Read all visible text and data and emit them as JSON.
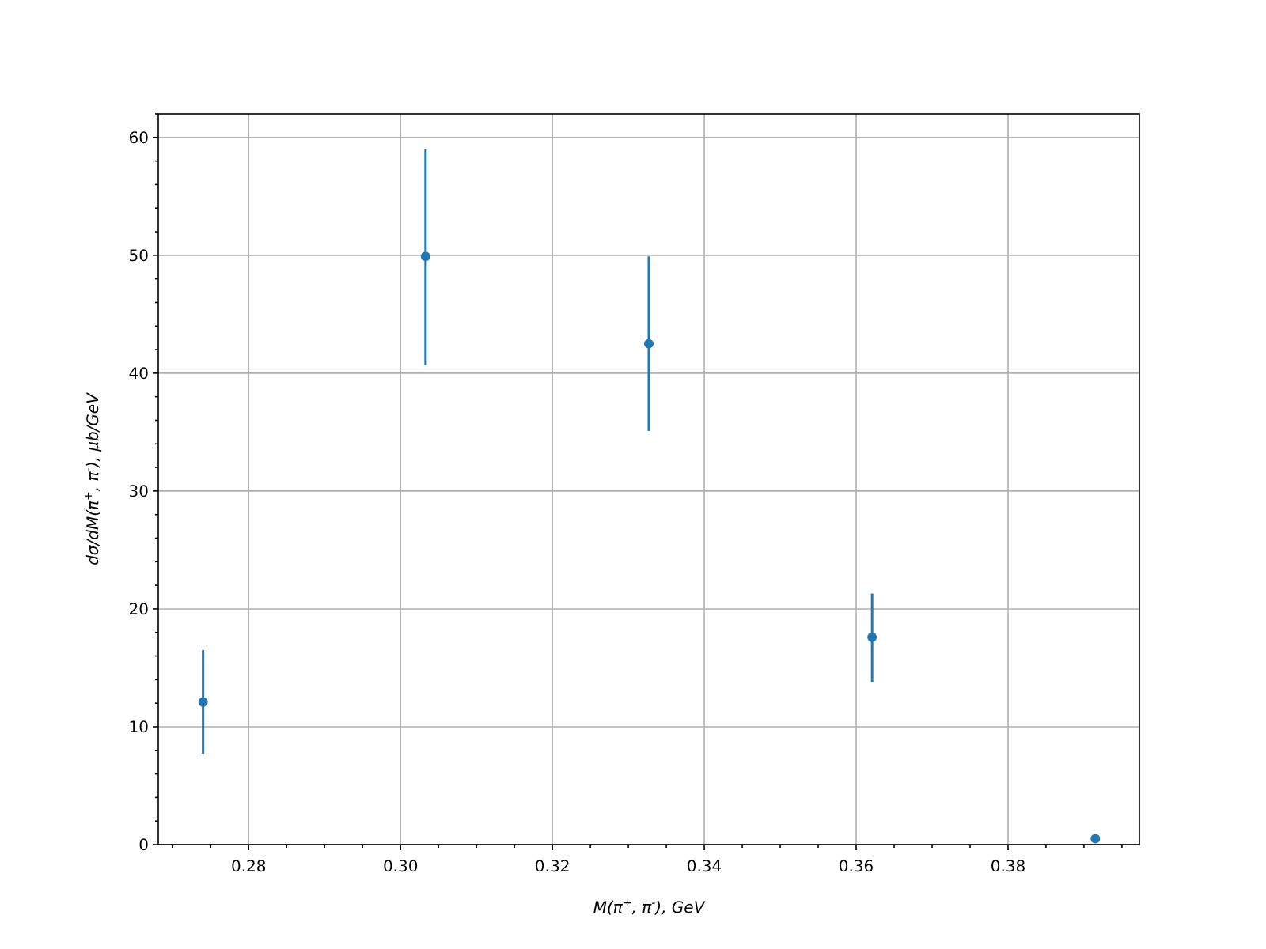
{
  "chart_data": {
    "type": "scatter",
    "xlabel": "M(π$^{+}$, π$^{-}$), GeV",
    "ylabel": "dσ/dM(π$^{+}$, π$^{-}$), μb/GeV",
    "x": [
      0.274,
      0.3033,
      0.3327,
      0.3621,
      0.3915
    ],
    "series": [
      {
        "color": "#1f77b4",
        "values": [
          12.1,
          49.9,
          42.5,
          17.6,
          0.5
        ],
        "errors": [
          [
            7.7,
            16.5
          ],
          [
            40.7,
            59
          ],
          [
            35.1,
            49.9
          ],
          [
            13.8,
            21.3
          ],
          null
        ]
      }
    ],
    "xlim": [
      0.2681,
      0.3973
    ],
    "ylim": [
      0,
      62
    ],
    "xticks": [
      {
        "value": 0.27,
        "label": null
      },
      {
        "value": 0.275,
        "label": null
      },
      {
        "value": 0.28,
        "label": "0.28"
      },
      {
        "value": 0.285,
        "label": null
      },
      {
        "value": 0.29,
        "label": null
      },
      {
        "value": 0.295,
        "label": null
      },
      {
        "value": 0.3,
        "label": "0.30"
      },
      {
        "value": 0.305,
        "label": null
      },
      {
        "value": 0.31,
        "label": null
      },
      {
        "value": 0.315,
        "label": null
      },
      {
        "value": 0.32,
        "label": "0.32"
      },
      {
        "value": 0.325,
        "label": null
      },
      {
        "value": 0.33,
        "label": null
      },
      {
        "value": 0.335,
        "label": null
      },
      {
        "value": 0.34,
        "label": "0.34"
      },
      {
        "value": 0.345,
        "label": null
      },
      {
        "value": 0.35,
        "label": null
      },
      {
        "value": 0.355,
        "label": null
      },
      {
        "value": 0.36,
        "label": "0.36"
      },
      {
        "value": 0.365,
        "label": null
      },
      {
        "value": 0.37,
        "label": null
      },
      {
        "value": 0.375,
        "label": null
      },
      {
        "value": 0.38,
        "label": "0.38"
      },
      {
        "value": 0.385,
        "label": null
      },
      {
        "value": 0.39,
        "label": null
      },
      {
        "value": 0.395,
        "label": null
      }
    ],
    "yticks": [
      0,
      {
        "value": 2,
        "label": null
      },
      {
        "value": 4,
        "label": null
      },
      {
        "value": 6,
        "label": null
      },
      {
        "value": 8,
        "label": null
      },
      10,
      {
        "value": 12,
        "label": null
      },
      {
        "value": 14,
        "label": null
      },
      {
        "value": 16,
        "label": null
      },
      {
        "value": 18,
        "label": null
      },
      20,
      {
        "value": 22,
        "label": null
      },
      {
        "value": 24,
        "label": null
      },
      {
        "value": 26,
        "label": null
      },
      {
        "value": 28,
        "label": null
      },
      30,
      {
        "value": 32,
        "label": null
      },
      {
        "value": 34,
        "label": null
      },
      {
        "value": 36,
        "label": null
      },
      {
        "value": 38,
        "label": null
      },
      40,
      {
        "value": 42,
        "label": null
      },
      {
        "value": 44,
        "label": null
      },
      {
        "value": 46,
        "label": null
      },
      {
        "value": 48,
        "label": null
      },
      50,
      {
        "value": 52,
        "label": null
      },
      {
        "value": 54,
        "label": null
      },
      {
        "value": 56,
        "label": null
      },
      {
        "value": 58,
        "label": null
      },
      60,
      {
        "value": 62,
        "label": null
      }
    ],
    "grid": true,
    "marker": "circle"
  }
}
